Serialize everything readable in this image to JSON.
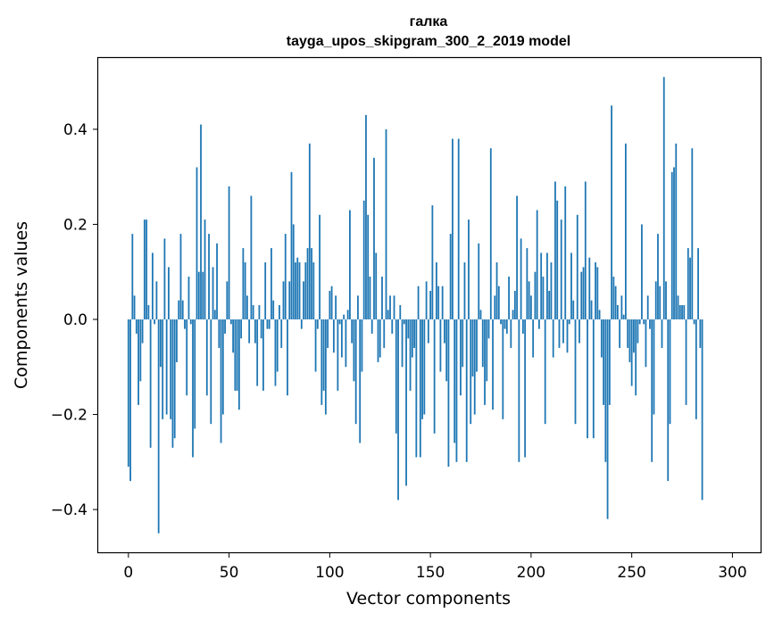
{
  "chart_data": {
    "type": "bar",
    "title": "галка",
    "subtitle": "tayga_upos_skipgram_300_2_2019 model",
    "xlabel": "Vector components",
    "ylabel": "Components values",
    "xlim": [
      -15,
      314
    ],
    "ylim": [
      -0.49,
      0.55
    ],
    "xticks": [
      0,
      50,
      100,
      150,
      200,
      250,
      300
    ],
    "xtick_labels": [
      "0",
      "50",
      "100",
      "150",
      "200",
      "250",
      "300"
    ],
    "yticks": [
      -0.4,
      -0.2,
      0.0,
      0.2,
      0.4
    ],
    "ytick_labels": [
      "−0.4",
      "−0.2",
      "0.0",
      "0.2",
      "0.4"
    ],
    "grid": false,
    "bar_color": "#1f77b4",
    "series": [
      {
        "name": "галка",
        "values": [
          -0.31,
          -0.34,
          0.18,
          0.05,
          -0.03,
          -0.18,
          -0.13,
          -0.05,
          0.21,
          0.21,
          0.03,
          -0.27,
          0.14,
          -0.01,
          0.08,
          -0.45,
          -0.1,
          -0.21,
          0.17,
          -0.2,
          0.11,
          -0.21,
          -0.27,
          -0.25,
          -0.09,
          0.04,
          0.18,
          0.04,
          -0.02,
          -0.16,
          0.09,
          -0.01,
          -0.29,
          -0.23,
          0.32,
          0.1,
          0.41,
          0.1,
          0.21,
          -0.16,
          0.18,
          -0.22,
          0.11,
          0.02,
          0.16,
          -0.06,
          -0.26,
          -0.2,
          -0.03,
          0.08,
          0.28,
          -0.01,
          -0.07,
          -0.15,
          -0.15,
          -0.19,
          -0.04,
          0.15,
          0.12,
          0.05,
          -0.05,
          0.26,
          0.03,
          -0.05,
          -0.14,
          0.03,
          -0.04,
          -0.15,
          0.12,
          -0.02,
          -0.02,
          0.15,
          0.04,
          -0.14,
          -0.11,
          0.03,
          -0.06,
          0.08,
          0.18,
          -0.16,
          0.08,
          0.31,
          0.2,
          0.12,
          0.13,
          0.12,
          -0.02,
          0.08,
          0.12,
          0.15,
          0.37,
          0.15,
          0.12,
          -0.11,
          -0.02,
          0.22,
          -0.18,
          -0.15,
          -0.2,
          -0.06,
          0.06,
          0.07,
          -0.07,
          0.05,
          -0.15,
          -0.01,
          -0.08,
          0.01,
          -0.1,
          0.02,
          0.23,
          -0.05,
          -0.13,
          -0.22,
          0.05,
          -0.26,
          -0.11,
          0.25,
          0.43,
          0.22,
          0.09,
          -0.03,
          0.34,
          0.14,
          -0.09,
          -0.08,
          0.09,
          -0.06,
          0.4,
          0.02,
          0.05,
          -0.03,
          0.05,
          -0.24,
          -0.38,
          0.03,
          -0.1,
          -0.01,
          -0.35,
          -0.04,
          -0.15,
          -0.08,
          -0.06,
          -0.29,
          0.07,
          -0.29,
          -0.21,
          -0.2,
          0.08,
          -0.05,
          0.06,
          0.24,
          -0.24,
          0.12,
          0.07,
          -0.11,
          0.07,
          -0.05,
          -0.13,
          -0.31,
          0.18,
          0.38,
          -0.26,
          -0.3,
          0.38,
          -0.16,
          -0.1,
          0.12,
          -0.3,
          0.21,
          -0.22,
          -0.12,
          -0.2,
          -0.11,
          0.16,
          0.02,
          -0.1,
          -0.18,
          -0.13,
          -0.04,
          0.36,
          -0.19,
          0.05,
          0.12,
          0.07,
          -0.01,
          -0.21,
          -0.02,
          -0.03,
          0.09,
          -0.06,
          0.02,
          0.06,
          0.26,
          -0.3,
          0.17,
          -0.03,
          -0.29,
          0.15,
          0.08,
          0.05,
          -0.08,
          0.1,
          0.23,
          -0.02,
          0.14,
          0.09,
          -0.22,
          0.14,
          0.06,
          0.12,
          -0.08,
          0.29,
          0.25,
          -0.06,
          0.21,
          -0.05,
          0.28,
          -0.07,
          -0.01,
          0.14,
          0.04,
          -0.22,
          0.22,
          -0.05,
          0.1,
          0.11,
          0.29,
          -0.25,
          0.13,
          0.04,
          -0.25,
          0.12,
          0.11,
          0.02,
          -0.08,
          -0.18,
          -0.3,
          -0.42,
          -0.18,
          0.45,
          0.09,
          0.07,
          0.03,
          -0.06,
          0.05,
          0.01,
          0.37,
          -0.06,
          -0.09,
          -0.14,
          -0.07,
          -0.16,
          -0.05,
          -0.01,
          0.2,
          -0.01,
          -0.1,
          0.05,
          -0.02,
          -0.3,
          -0.2,
          0.08,
          0.18,
          0.07,
          -0.06,
          0.51,
          0.08,
          -0.34,
          -0.22,
          0.31,
          0.32,
          0.37,
          0.05,
          0.03,
          0.03,
          0.03,
          -0.18,
          0.15,
          0.13,
          0.36,
          -0.01,
          -0.21,
          0.15,
          -0.06,
          -0.38
        ]
      }
    ]
  }
}
